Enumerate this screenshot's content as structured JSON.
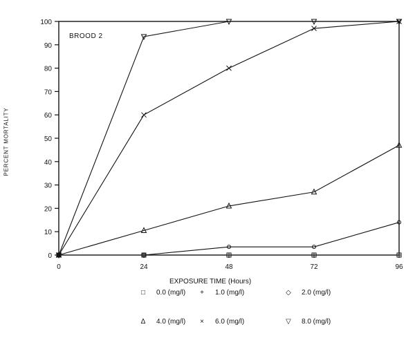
{
  "chart_data": {
    "type": "line",
    "title": "BROOD 2",
    "xlabel": "EXPOSURE TIME (Hours)",
    "ylabel": "PERCENT MORTALITY",
    "x": [
      0,
      24,
      48,
      72,
      96
    ],
    "xticks": [
      "0",
      "24",
      "48",
      "72",
      "96"
    ],
    "yticks": [
      "0",
      "10",
      "20",
      "30",
      "40",
      "50",
      "60",
      "70",
      "80",
      "90",
      "100"
    ],
    "xlim": [
      0,
      96
    ],
    "ylim": [
      0,
      100
    ],
    "grid": false,
    "legend_position": "bottom",
    "series": [
      {
        "name": "0.0 (mg/l)",
        "marker": "square",
        "symbol": "□",
        "values": [
          0,
          0,
          0,
          0,
          0
        ]
      },
      {
        "name": "1.0 (mg/l)",
        "marker": "plus",
        "symbol": "+",
        "values": [
          0,
          0,
          0,
          0,
          0
        ]
      },
      {
        "name": "2.0 (mg/l)",
        "marker": "diamond",
        "symbol": "◇",
        "values": [
          0,
          0,
          3.5,
          3.5,
          14
        ]
      },
      {
        "name": "4.0 (mg/l)",
        "marker": "triangle-up",
        "symbol": "Δ",
        "values": [
          0,
          10.5,
          21,
          27,
          47
        ]
      },
      {
        "name": "6.0 (mg/l)",
        "marker": "x",
        "symbol": "×",
        "values": [
          0,
          60,
          80,
          97,
          100
        ]
      },
      {
        "name": "8.0 (mg/l)",
        "marker": "triangle-down",
        "symbol": "▽",
        "values": [
          0,
          93.5,
          100,
          100,
          100
        ]
      }
    ]
  }
}
